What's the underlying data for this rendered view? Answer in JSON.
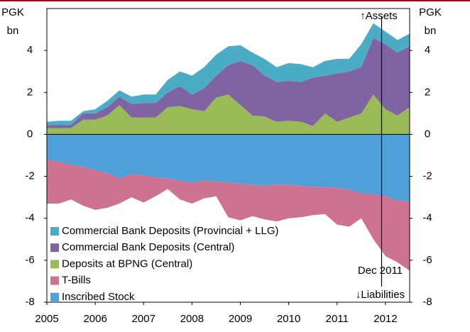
{
  "chart_data": {
    "type": "stacked_area",
    "ylabel": [
      "PGK",
      "bn"
    ],
    "y2label": [
      "PGK",
      "bn"
    ],
    "x": [
      2005,
      2005.25,
      2005.5,
      2005.75,
      2006,
      2006.25,
      2006.5,
      2006.75,
      2007,
      2007.25,
      2007.5,
      2007.75,
      2008,
      2008.25,
      2008.5,
      2008.75,
      2009,
      2009.25,
      2009.5,
      2009.75,
      2010,
      2010.25,
      2010.5,
      2010.75,
      2011,
      2011.25,
      2011.5,
      2011.75,
      2012,
      2012.25,
      2012.5
    ],
    "series": [
      {
        "name": "Commercial Bank Deposits (Provincial + LLG)",
        "color": "#4bacc6",
        "values": [
          0.15,
          0.2,
          0.2,
          0.1,
          0.2,
          0.3,
          0.3,
          0.35,
          0.4,
          0.4,
          0.6,
          0.7,
          0.9,
          1.0,
          1.0,
          0.9,
          0.75,
          0.6,
          0.8,
          0.7,
          0.85,
          0.85,
          0.5,
          0.7,
          0.7,
          0.6,
          1.1,
          0.7,
          0.6,
          0.6,
          0.6
        ]
      },
      {
        "name": "Commercial Bank Deposits (Central)",
        "color": "#8064a2",
        "values": [
          0.15,
          0.15,
          0.15,
          0.3,
          0.3,
          0.4,
          0.4,
          0.65,
          0.7,
          0.7,
          0.7,
          0.95,
          0.7,
          1.1,
          1.05,
          1.4,
          2.1,
          2.4,
          1.95,
          1.9,
          1.9,
          1.9,
          2.3,
          1.8,
          2.3,
          2.2,
          2.2,
          2.7,
          3.1,
          3.0,
          2.9
        ]
      },
      {
        "name": "Deposits at BPNG (Central)",
        "color": "#9bbb59",
        "values": [
          0.3,
          0.3,
          0.3,
          0.7,
          0.7,
          0.9,
          1.4,
          0.8,
          0.8,
          0.8,
          1.3,
          1.35,
          1.2,
          1.1,
          1.75,
          1.9,
          1.4,
          0.9,
          0.85,
          0.6,
          0.65,
          0.6,
          0.4,
          1.0,
          0.6,
          0.8,
          1.0,
          1.9,
          1.2,
          0.9,
          1.3
        ]
      },
      {
        "name": "T-Bills",
        "color": "#cd7391",
        "values": [
          -2.1,
          -2.0,
          -1.65,
          -1.85,
          -1.9,
          -1.65,
          -1.2,
          -1.1,
          -1.3,
          -0.9,
          -0.5,
          -0.9,
          -1.0,
          -0.85,
          -0.7,
          -1.65,
          -1.75,
          -1.5,
          -1.6,
          -1.75,
          -1.6,
          -1.5,
          -1.35,
          -1.3,
          -1.75,
          -1.75,
          -1.2,
          -2.15,
          -2.85,
          -2.95,
          -3.3
        ]
      },
      {
        "name": "Inscribed Stock",
        "color": "#4f9fd9",
        "values": [
          -1.2,
          -1.3,
          -1.45,
          -1.55,
          -1.7,
          -1.85,
          -2.1,
          -1.9,
          -1.95,
          -2.05,
          -2.1,
          -2.2,
          -2.3,
          -2.2,
          -2.25,
          -2.3,
          -2.35,
          -2.4,
          -2.45,
          -2.4,
          -2.4,
          -2.45,
          -2.5,
          -2.5,
          -2.55,
          -2.65,
          -2.8,
          -2.85,
          -2.95,
          -3.15,
          -3.2
        ]
      }
    ],
    "xlim": [
      2005,
      2012.5
    ],
    "xticks": [
      2005,
      2006,
      2007,
      2008,
      2009,
      2010,
      2011,
      2012
    ],
    "ylim": [
      -8,
      6
    ],
    "yticks": [
      -8,
      -6,
      -4,
      -2,
      0,
      2,
      4
    ],
    "y2lim": [
      -8,
      6
    ],
    "y2ticks": [
      -8,
      -6,
      -4,
      -2,
      0,
      2,
      4
    ],
    "legend": "lower left",
    "annotations": [
      {
        "text": "↑Assets",
        "x": 2011.92
      },
      {
        "text": "Dec 2011",
        "x": 2011.92
      },
      {
        "text": "↓Liabilities",
        "x": 2011.92
      }
    ]
  }
}
